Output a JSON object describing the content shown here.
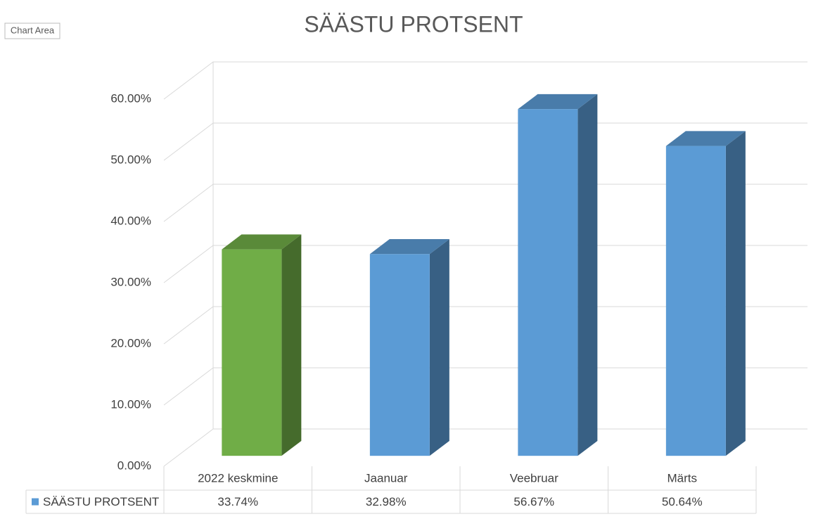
{
  "tooltip": "Chart Area",
  "chart_data": {
    "type": "bar3d",
    "title": "SÄÄSTU PROTSENT",
    "categories": [
      "2022 keskmine",
      "Jaanuar",
      "Veebruar",
      "Märts"
    ],
    "series": [
      {
        "name": "SÄÄSTU PROTSENT",
        "color": "#5b9bd5",
        "colors": [
          "#70ad47",
          "#5b9bd5",
          "#5b9bd5",
          "#5b9bd5"
        ],
        "values": [
          33.74,
          32.98,
          56.67,
          50.64
        ],
        "value_labels": [
          "33.74%",
          "32.98%",
          "56.67%",
          "50.64%"
        ]
      }
    ],
    "ylim": [
      0,
      60
    ],
    "yticks": [
      {
        "value": 0,
        "label": "0.00%"
      },
      {
        "value": 10,
        "label": "10.00%"
      },
      {
        "value": 20,
        "label": "20.00%"
      },
      {
        "value": 30,
        "label": "30.00%"
      },
      {
        "value": 40,
        "label": "40.00%"
      },
      {
        "value": 50,
        "label": "50.00%"
      },
      {
        "value": 60,
        "label": "60.00%"
      }
    ],
    "grid": true,
    "data_table": true
  }
}
